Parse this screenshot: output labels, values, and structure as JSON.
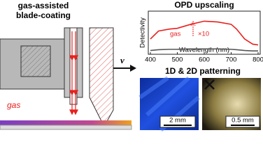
{
  "diagram": {
    "title_lines": [
      "gas-assisted",
      "blade-coating"
    ],
    "velocity_label": "v",
    "gas_label": "gas"
  },
  "chart_data": {
    "type": "line",
    "title": "OPD upscaling",
    "xlabel": "Wavelength (nm)",
    "ylabel": "Detectivity",
    "annotations": [
      "gas",
      "×10"
    ],
    "x": [
      400,
      430,
      470,
      500,
      550,
      600,
      650,
      700,
      720,
      750,
      780,
      800
    ],
    "series": [
      {
        "color": "#e8201e",
        "values": [
          0.35,
          0.55,
          0.6,
          0.62,
          0.72,
          0.8,
          0.78,
          0.72,
          0.6,
          0.35,
          0.22,
          0.2
        ]
      },
      {
        "color": "#555555",
        "values": [
          0.06,
          0.08,
          0.09,
          0.09,
          0.1,
          0.1,
          0.1,
          0.09,
          0.08,
          0.06,
          0.05,
          0.05
        ]
      }
    ],
    "xlim": [
      400,
      800
    ],
    "xticks": [
      400,
      500,
      600,
      700,
      800
    ],
    "ylim": [
      0,
      1
    ]
  },
  "patterning": {
    "title": "1D & 2D patterning",
    "scale_bars": [
      "2 mm",
      "0.5 mm"
    ]
  }
}
